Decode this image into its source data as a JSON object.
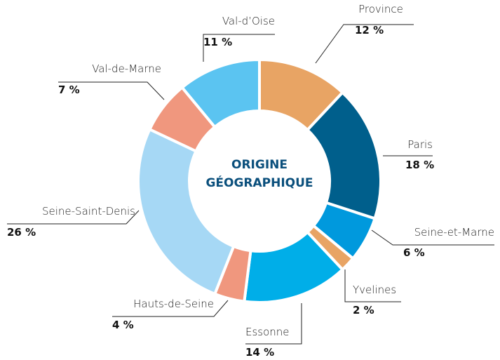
{
  "chart_data": {
    "type": "pie",
    "title": "ORIGINE GÉOGRAPHIQUE",
    "categories": [
      "Province",
      "Paris",
      "Seine-et-Marne",
      "Yvelines",
      "Essonne",
      "Hauts-de-Seine",
      "Seine-Saint-Denis",
      "Val-de-Marne",
      "Val-d’Oise"
    ],
    "values": [
      12,
      18,
      6,
      2,
      14,
      4,
      26,
      7,
      11
    ],
    "value_labels": [
      "12 %",
      "18 %",
      "6 %",
      "2 %",
      "14 %",
      "4 %",
      "26 %",
      "7 %",
      "11 %"
    ],
    "colors": [
      "#e8a464",
      "#005f8c",
      "#0099dd",
      "#e8a464",
      "#00aee8",
      "#f0977e",
      "#a6d8f5",
      "#f0977e",
      "#5bc4f1"
    ]
  }
}
